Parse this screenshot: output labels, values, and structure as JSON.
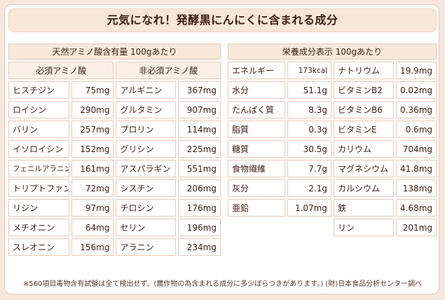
{
  "title": "元気になれ！発酵黒にんにくに含まれる成分",
  "amino": {
    "header": "天然アミノ酸含有量 100gあたり",
    "essential_header": "必須アミノ酸",
    "nonessential_header": "非必須アミノ酸",
    "rows": [
      {
        "e_name": "ヒスチジン",
        "e_val": "75mg",
        "n_name": "アルギニン",
        "n_val": "367mg"
      },
      {
        "e_name": "ロイシン",
        "e_val": "290mg",
        "n_name": "グルタミン",
        "n_val": "907mg"
      },
      {
        "e_name": "バリン",
        "e_val": "257mg",
        "n_name": "プロリン",
        "n_val": "114mg"
      },
      {
        "e_name": "イソロイシン",
        "e_val": "152mg",
        "n_name": "グリシン",
        "n_val": "225mg"
      },
      {
        "e_name": "フェニルアラニン",
        "e_val": "161mg",
        "n_name": "アスパラギン",
        "n_val": "551mg"
      },
      {
        "e_name": "トリプトファン",
        "e_val": "72mg",
        "n_name": "シスチン",
        "n_val": "206mg"
      },
      {
        "e_name": "リジン",
        "e_val": "97mg",
        "n_name": "チロシン",
        "n_val": "176mg"
      },
      {
        "e_name": "メチオニン",
        "e_val": "64mg",
        "n_name": "セリン",
        "n_val": "196mg"
      },
      {
        "e_name": "スレオニン",
        "e_val": "156mg",
        "n_name": "アラニン",
        "n_val": "234mg"
      }
    ]
  },
  "nutrition": {
    "header": "栄養成分表示 100gあたり",
    "rows": [
      {
        "a_name": "エネルギー",
        "a_val": "173kcal",
        "b_name": "ナトリウム",
        "b_val": "19.9mg"
      },
      {
        "a_name": "水分",
        "a_val": "51.1g",
        "b_name": "ビタミンB2",
        "b_val": "0.02mg"
      },
      {
        "a_name": "たんぱく質",
        "a_val": "8.3g",
        "b_name": "ビタミンB6",
        "b_val": "0.36mg"
      },
      {
        "a_name": "脂質",
        "a_val": "0.3g",
        "b_name": "ビタミンE",
        "b_val": "0.6mg"
      },
      {
        "a_name": "糖質",
        "a_val": "30.5g",
        "b_name": "カリウム",
        "b_val": "704mg"
      },
      {
        "a_name": "食物繊維",
        "a_val": "7.7g",
        "b_name": "マグネシウム",
        "b_val": "41.8mg"
      },
      {
        "a_name": "灰分",
        "a_val": "2.1g",
        "b_name": "カルシウム",
        "b_val": "138mg"
      },
      {
        "a_name": "亜鉛",
        "a_val": "1.07mg",
        "b_name": "鉄",
        "b_val": "4.68mg"
      },
      {
        "b_name": "リン",
        "b_val": "201mg"
      }
    ]
  },
  "footnote": "※560項目毒物含有試験は全て検出せず。(農作物の為含まれる成分に多少ばらつきがあります。) (財)日本食品分析センター調べ"
}
